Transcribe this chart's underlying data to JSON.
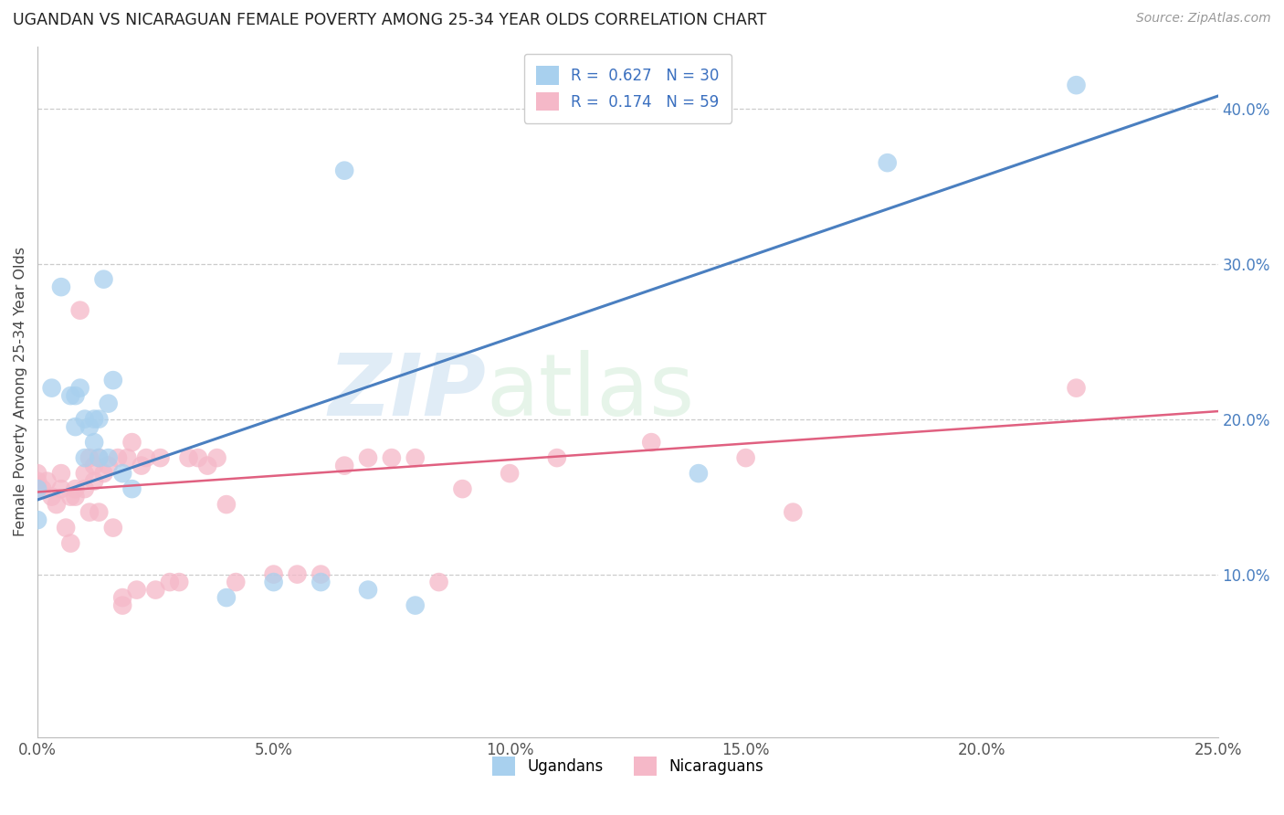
{
  "title": "UGANDAN VS NICARAGUAN FEMALE POVERTY AMONG 25-34 YEAR OLDS CORRELATION CHART",
  "source": "Source: ZipAtlas.com",
  "ylabel": "Female Poverty Among 25-34 Year Olds",
  "xlim": [
    0.0,
    0.25
  ],
  "ylim": [
    -0.005,
    0.44
  ],
  "xticks": [
    0.0,
    0.05,
    0.1,
    0.15,
    0.2,
    0.25
  ],
  "yticks": [
    0.1,
    0.2,
    0.3,
    0.4
  ],
  "ugandan_R": 0.627,
  "ugandan_N": 30,
  "nicaraguan_R": 0.174,
  "nicaraguan_N": 59,
  "ugandan_color": "#a8d0ee",
  "nicaraguan_color": "#f5b8c8",
  "ugandan_line_color": "#4a7fc0",
  "nicaraguan_line_color": "#e06080",
  "background_color": "#ffffff",
  "grid_color": "#cccccc",
  "title_color": "#222222",
  "watermark_zip": "ZIP",
  "watermark_atlas": "atlas",
  "ugandan_x": [
    0.0,
    0.0,
    0.003,
    0.005,
    0.007,
    0.008,
    0.008,
    0.009,
    0.01,
    0.01,
    0.011,
    0.012,
    0.012,
    0.013,
    0.013,
    0.014,
    0.015,
    0.015,
    0.016,
    0.018,
    0.02,
    0.04,
    0.05,
    0.06,
    0.065,
    0.07,
    0.08,
    0.14,
    0.18,
    0.22
  ],
  "ugandan_y": [
    0.155,
    0.135,
    0.22,
    0.285,
    0.215,
    0.195,
    0.215,
    0.22,
    0.2,
    0.175,
    0.195,
    0.2,
    0.185,
    0.2,
    0.175,
    0.29,
    0.175,
    0.21,
    0.225,
    0.165,
    0.155,
    0.085,
    0.095,
    0.095,
    0.36,
    0.09,
    0.08,
    0.165,
    0.365,
    0.415
  ],
  "nicaraguan_x": [
    0.0,
    0.0,
    0.0,
    0.001,
    0.002,
    0.003,
    0.004,
    0.005,
    0.005,
    0.006,
    0.007,
    0.007,
    0.008,
    0.008,
    0.009,
    0.01,
    0.01,
    0.011,
    0.011,
    0.012,
    0.012,
    0.013,
    0.013,
    0.014,
    0.015,
    0.016,
    0.017,
    0.018,
    0.018,
    0.019,
    0.02,
    0.021,
    0.022,
    0.023,
    0.025,
    0.026,
    0.028,
    0.03,
    0.032,
    0.034,
    0.036,
    0.038,
    0.04,
    0.042,
    0.05,
    0.055,
    0.06,
    0.065,
    0.07,
    0.075,
    0.08,
    0.085,
    0.09,
    0.1,
    0.11,
    0.13,
    0.15,
    0.16,
    0.22
  ],
  "nicaraguan_y": [
    0.155,
    0.16,
    0.165,
    0.155,
    0.16,
    0.15,
    0.145,
    0.155,
    0.165,
    0.13,
    0.12,
    0.15,
    0.15,
    0.155,
    0.27,
    0.155,
    0.165,
    0.14,
    0.175,
    0.16,
    0.17,
    0.14,
    0.175,
    0.165,
    0.17,
    0.13,
    0.175,
    0.08,
    0.085,
    0.175,
    0.185,
    0.09,
    0.17,
    0.175,
    0.09,
    0.175,
    0.095,
    0.095,
    0.175,
    0.175,
    0.17,
    0.175,
    0.145,
    0.095,
    0.1,
    0.1,
    0.1,
    0.17,
    0.175,
    0.175,
    0.175,
    0.095,
    0.155,
    0.165,
    0.175,
    0.185,
    0.175,
    0.14,
    0.22
  ]
}
